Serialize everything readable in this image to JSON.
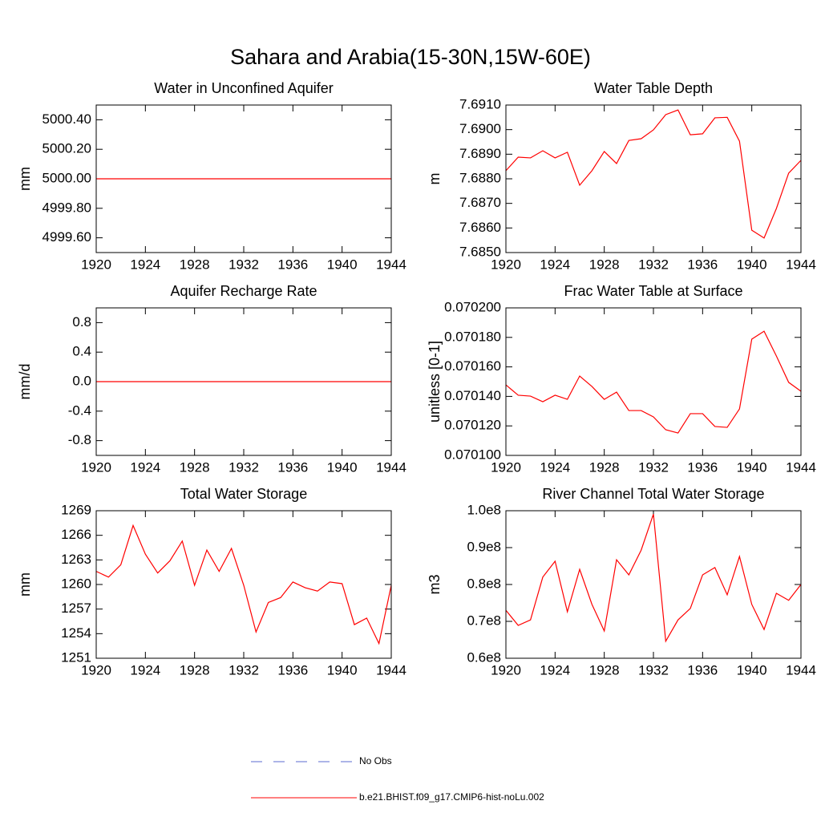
{
  "title": "Sahara and Arabia(15-30N,15W-60E)",
  "legend": [
    {
      "name": "No Obs",
      "color": "#5b6bd0",
      "dash": true
    },
    {
      "name": "b.e21.BHIST.f09_g17.CMIP6-hist-noLu.002",
      "color": "#ff0000",
      "dash": false
    }
  ],
  "chart_data": [
    {
      "type": "line",
      "title": "Water in Unconfined Aquifer",
      "y_label": "mm",
      "x": [
        1920,
        1921,
        1922,
        1923,
        1924,
        1925,
        1926,
        1927,
        1928,
        1929,
        1930,
        1931,
        1932,
        1933,
        1934,
        1935,
        1936,
        1937,
        1938,
        1939,
        1940,
        1941,
        1942,
        1943,
        1944
      ],
      "xlim": [
        1920,
        1944
      ],
      "xticks": [
        1920,
        1924,
        1928,
        1932,
        1936,
        1940,
        1944
      ],
      "ylim": [
        4999.5,
        5000.5
      ],
      "yticks": [
        {
          "value": 4999.6,
          "label": "4999.60"
        },
        {
          "value": 4999.8,
          "label": "4999.80"
        },
        {
          "value": 5000,
          "label": "5000.00"
        },
        {
          "value": 5000.2,
          "label": "5000.20"
        },
        {
          "value": 5000.4,
          "label": "5000.40"
        }
      ],
      "color": "#ff0000",
      "values": [
        5000,
        5000,
        5000,
        5000,
        5000,
        5000,
        5000,
        5000,
        5000,
        5000,
        5000,
        5000,
        5000,
        5000,
        5000,
        5000,
        5000,
        5000,
        5000,
        5000,
        5000,
        5000,
        5000,
        5000,
        5000
      ]
    },
    {
      "type": "line",
      "title": "Water Table Depth",
      "y_label": "m",
      "x": [
        1920,
        1921,
        1922,
        1923,
        1924,
        1925,
        1926,
        1927,
        1928,
        1929,
        1930,
        1931,
        1932,
        1933,
        1934,
        1935,
        1936,
        1937,
        1938,
        1939,
        1940,
        1941,
        1942,
        1943,
        1944
      ],
      "xlim": [
        1920,
        1944
      ],
      "xticks": [
        1920,
        1924,
        1928,
        1932,
        1936,
        1940,
        1944
      ],
      "ylim": [
        7.685,
        7.691
      ],
      "yticks": [
        {
          "value": 7.685,
          "label": "7.6850"
        },
        {
          "value": 7.686,
          "label": "7.6860"
        },
        {
          "value": 7.687,
          "label": "7.6870"
        },
        {
          "value": 7.688,
          "label": "7.6880"
        },
        {
          "value": 7.689,
          "label": "7.6890"
        },
        {
          "value": 7.69,
          "label": "7.6900"
        },
        {
          "value": 7.691,
          "label": "7.6910"
        }
      ],
      "color": "#ff0000",
      "values": [
        7.68833,
        7.68888,
        7.68885,
        7.68914,
        7.68885,
        7.68908,
        7.68774,
        7.68833,
        7.68911,
        7.68862,
        7.68956,
        7.68963,
        7.68999,
        7.69061,
        7.6908,
        7.68979,
        7.68983,
        7.69048,
        7.6905,
        7.68953,
        7.68591,
        7.68559,
        7.68679,
        7.68823,
        7.68875
      ]
    },
    {
      "type": "line",
      "title": "Aquifer Recharge Rate",
      "y_label": "mm/d",
      "x": [
        1920,
        1921,
        1922,
        1923,
        1924,
        1925,
        1926,
        1927,
        1928,
        1929,
        1930,
        1931,
        1932,
        1933,
        1934,
        1935,
        1936,
        1937,
        1938,
        1939,
        1940,
        1941,
        1942,
        1943,
        1944
      ],
      "xlim": [
        1920,
        1944
      ],
      "xticks": [
        1920,
        1924,
        1928,
        1932,
        1936,
        1940,
        1944
      ],
      "ylim": [
        -1,
        1
      ],
      "yticks": [
        -0.8,
        -0.4,
        {
          "value": 0,
          "label": "0.0"
        },
        0.4,
        0.8
      ],
      "color": "#ff0000",
      "values": [
        0,
        0,
        0,
        0,
        0,
        0,
        0,
        0,
        0,
        0,
        0,
        0,
        0,
        0,
        0,
        0,
        0,
        0,
        0,
        0,
        0,
        0,
        0,
        0,
        0
      ]
    },
    {
      "type": "line",
      "title": "Frac Water Table at Surface",
      "y_label": "unitless [0-1]",
      "x": [
        1920,
        1921,
        1922,
        1923,
        1924,
        1925,
        1926,
        1927,
        1928,
        1929,
        1930,
        1931,
        1932,
        1933,
        1934,
        1935,
        1936,
        1937,
        1938,
        1939,
        1940,
        1941,
        1942,
        1943,
        1944
      ],
      "xlim": [
        1920,
        1944
      ],
      "xticks": [
        1920,
        1924,
        1928,
        1932,
        1936,
        1940,
        1944
      ],
      "ylim": [
        0.0701,
        0.0702
      ],
      "yticks": [
        {
          "value": 0.0701,
          "label": "0.070100"
        },
        {
          "value": 0.07012,
          "label": "0.070120"
        },
        {
          "value": 0.07014,
          "label": "0.070140"
        },
        {
          "value": 0.07016,
          "label": "0.070160"
        },
        {
          "value": 0.07018,
          "label": "0.070180"
        },
        {
          "value": 0.0702,
          "label": "0.070200"
        }
      ],
      "color": "#ff0000",
      "values": [
        0.0701478,
        0.0701408,
        0.0701402,
        0.0701364,
        0.0701408,
        0.070138,
        0.0701538,
        0.0701467,
        0.070138,
        0.0701429,
        0.0701304,
        0.0701304,
        0.0701261,
        0.0701174,
        0.0701152,
        0.0701283,
        0.0701283,
        0.0701196,
        0.070119,
        0.0701315,
        0.0701788,
        0.0701842,
        0.0701674,
        0.0701495,
        0.0701435
      ]
    },
    {
      "type": "line",
      "title": "Total Water Storage",
      "y_label": "mm",
      "x": [
        1920,
        1921,
        1922,
        1923,
        1924,
        1925,
        1926,
        1927,
        1928,
        1929,
        1930,
        1931,
        1932,
        1933,
        1934,
        1935,
        1936,
        1937,
        1938,
        1939,
        1940,
        1941,
        1942,
        1943,
        1944
      ],
      "xlim": [
        1920,
        1944
      ],
      "xticks": [
        1920,
        1924,
        1928,
        1932,
        1936,
        1940,
        1944
      ],
      "ylim": [
        1251,
        1269
      ],
      "yticks": [
        1251,
        1254,
        1257,
        1260,
        1263,
        1266,
        1269
      ],
      "color": "#ff0000",
      "values": [
        1261.6,
        1260.9,
        1262.4,
        1267.2,
        1263.7,
        1261.4,
        1262.9,
        1265.3,
        1259.9,
        1264.2,
        1261.6,
        1264.4,
        1259.9,
        1254.2,
        1257.8,
        1258.4,
        1260.3,
        1259.6,
        1259.2,
        1260.3,
        1260.1,
        1255.1,
        1255.9,
        1252.8,
        1259.9
      ]
    },
    {
      "type": "line",
      "title": "River Channel Total Water Storage",
      "y_label": "m3",
      "x": [
        1920,
        1921,
        1922,
        1923,
        1924,
        1925,
        1926,
        1927,
        1928,
        1929,
        1930,
        1931,
        1932,
        1933,
        1934,
        1935,
        1936,
        1937,
        1938,
        1939,
        1940,
        1941,
        1942,
        1943,
        1944
      ],
      "xlim": [
        1920,
        1944
      ],
      "xticks": [
        1920,
        1924,
        1928,
        1932,
        1936,
        1940,
        1944
      ],
      "ylim": [
        60000000,
        100000000
      ],
      "yticks": [
        {
          "value": 60000000,
          "label": "0.6e8"
        },
        {
          "value": 70000000,
          "label": "0.7e8"
        },
        {
          "value": 80000000,
          "label": "0.8e8"
        },
        {
          "value": 90000000,
          "label": "0.9e8"
        },
        {
          "value": 100000000,
          "label": "1.0e8"
        }
      ],
      "color": "#ff0000",
      "values": [
        73000000,
        68900000,
        70400000,
        82000000,
        86300000,
        72600000,
        84100000,
        74600000,
        67400000,
        86700000,
        82600000,
        89300000,
        99100000,
        64600000,
        70400000,
        73500000,
        82600000,
        84600000,
        77200000,
        87600000,
        74600000,
        67800000,
        77600000,
        75700000,
        80000000
      ]
    }
  ]
}
